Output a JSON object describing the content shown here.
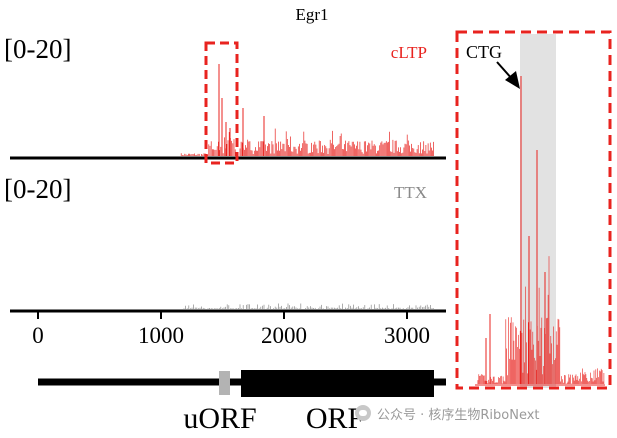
{
  "figure": {
    "title": "Egr1",
    "tracks": [
      {
        "range_label": "[0-20]",
        "condition": "cLTP",
        "color": "#e8231f"
      },
      {
        "range_label": "[0-20]",
        "condition": "TTX",
        "color": "#8a8a8a"
      }
    ],
    "inset": {
      "callout": "CTG",
      "highlight_color": "#e2e2e2"
    },
    "axis": {
      "ticks": [
        0,
        1000,
        2000,
        3000
      ],
      "tick_labels": [
        "0",
        "1000",
        "2000",
        "3000"
      ]
    },
    "gene_model": {
      "uorf_label": "uORF",
      "orf_label": "ORF"
    },
    "accent_colors": {
      "red": "#e8231f",
      "gray": "#8a8a8a",
      "black": "#000000"
    }
  },
  "watermark": {
    "text": "公众号 · 核序生物RiboNext",
    "icon": "wechat-icon"
  }
}
